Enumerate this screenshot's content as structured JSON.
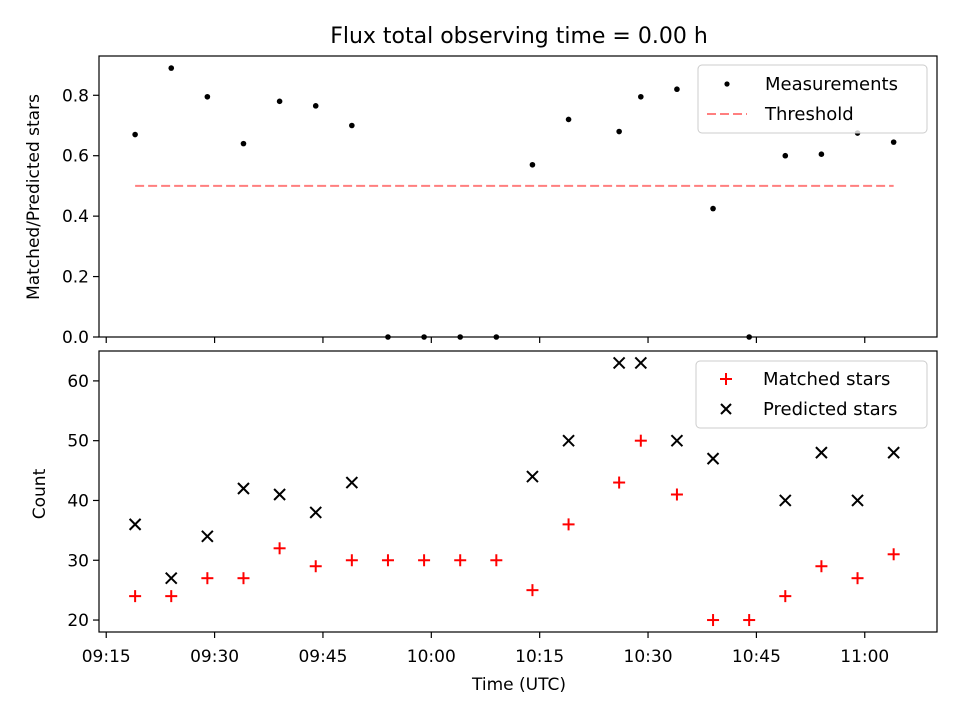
{
  "title": "Flux total observing time = 0.00 h",
  "chart_data": [
    {
      "type": "scatter",
      "ylabel": "Matched/Predicted stars",
      "xlabel": "",
      "ylim": [
        0,
        0.93
      ],
      "yticks": [
        0.0,
        0.2,
        0.4,
        0.6,
        0.8
      ],
      "ytick_labels": [
        "0.0",
        "0.2",
        "0.4",
        "0.6",
        "0.8"
      ],
      "legend_position": "top-right",
      "series": [
        {
          "name": "Measurements",
          "kind": "points",
          "color": "#000000",
          "x": [
            "09:19",
            "09:24",
            "09:29",
            "09:34",
            "09:39",
            "09:44",
            "09:49",
            "09:54",
            "09:59",
            "10:04",
            "10:09",
            "10:14",
            "10:19",
            "10:26",
            "10:29",
            "10:34",
            "10:39",
            "10:44",
            "10:49",
            "10:54",
            "10:59",
            "11:04"
          ],
          "y": [
            0.67,
            0.89,
            0.795,
            0.64,
            0.78,
            0.765,
            0.7,
            0.0,
            0.0,
            0.0,
            0.0,
            0.57,
            0.72,
            0.68,
            0.795,
            0.82,
            0.425,
            0.0,
            0.6,
            0.605,
            0.675,
            0.645
          ]
        },
        {
          "name": "Threshold",
          "kind": "dashed-line",
          "color": "#ff7f7f",
          "x": [
            "09:19",
            "11:04"
          ],
          "y": [
            0.5,
            0.5
          ]
        }
      ]
    },
    {
      "type": "scatter",
      "ylabel": "Count",
      "xlabel": "Time (UTC)",
      "ylim": [
        18,
        65
      ],
      "yticks": [
        20,
        30,
        40,
        50,
        60
      ],
      "ytick_labels": [
        "20",
        "30",
        "40",
        "50",
        "60"
      ],
      "xlim": [
        "09:14",
        "11:10"
      ],
      "xticks": [
        "09:15",
        "09:30",
        "09:45",
        "10:00",
        "10:15",
        "10:30",
        "10:45",
        "11:00"
      ],
      "xtick_labels": [
        "09:15",
        "09:30",
        "09:45",
        "10:00",
        "10:15",
        "10:30",
        "10:45",
        "11:00"
      ],
      "legend_position": "top-right",
      "series": [
        {
          "name": "Matched stars",
          "marker": "plus",
          "color": "#ff0000",
          "x": [
            "09:19",
            "09:24",
            "09:29",
            "09:34",
            "09:39",
            "09:44",
            "09:49",
            "09:54",
            "09:59",
            "10:04",
            "10:09",
            "10:14",
            "10:19",
            "10:26",
            "10:29",
            "10:34",
            "10:39",
            "10:44",
            "10:49",
            "10:54",
            "10:59",
            "11:04"
          ],
          "y": [
            24,
            24,
            27,
            27,
            32,
            29,
            30,
            30,
            30,
            30,
            30,
            25,
            36,
            43,
            50,
            41,
            20,
            20,
            24,
            29,
            27,
            31
          ]
        },
        {
          "name": "Predicted stars",
          "marker": "x",
          "color": "#000000",
          "x": [
            "09:19",
            "09:24",
            "09:29",
            "09:34",
            "09:39",
            "09:44",
            "09:49",
            "10:14",
            "10:19",
            "10:26",
            "10:29",
            "10:34",
            "10:39",
            "10:49",
            "10:54",
            "10:59",
            "11:04"
          ],
          "y": [
            36,
            27,
            34,
            42,
            41,
            38,
            43,
            44,
            50,
            63,
            63,
            50,
            47,
            40,
            48,
            40,
            48
          ]
        }
      ]
    }
  ]
}
